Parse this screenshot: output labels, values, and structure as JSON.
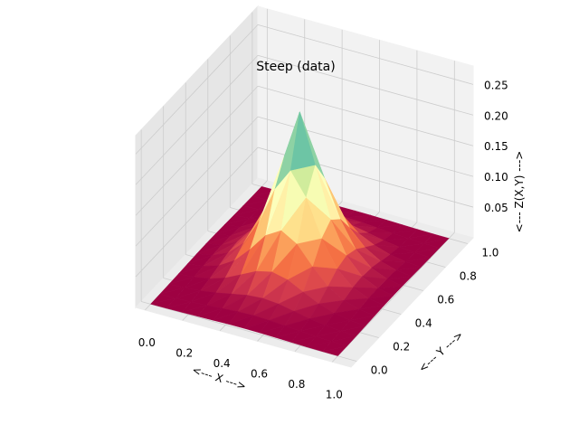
{
  "chart_data": {
    "type": "surface3d",
    "title": "Steep (data)",
    "xlabel": "<--- X --->",
    "ylabel": "<--- Y --->",
    "zlabel": "<--- Z(X,Y) --->",
    "xlim": [
      -0.05,
      1.1
    ],
    "ylim": [
      -0.05,
      1.05
    ],
    "zlim": [
      0.0,
      0.28
    ],
    "x_ticks": [
      "0.0",
      "0.2",
      "0.4",
      "0.6",
      "0.8",
      "1.0"
    ],
    "y_ticks": [
      "0.0",
      "0.2",
      "0.4",
      "0.6",
      "0.8",
      "1.0"
    ],
    "z_ticks": [
      "0.05",
      "0.10",
      "0.15",
      "0.20",
      "0.25"
    ],
    "x_tick_values": [
      0.0,
      0.2,
      0.4,
      0.6,
      0.8,
      1.0
    ],
    "y_tick_values": [
      0.0,
      0.2,
      0.4,
      0.6,
      0.8,
      1.0
    ],
    "z_tick_values": [
      0.05,
      0.1,
      0.15,
      0.2,
      0.25
    ],
    "colormap": "Spectral",
    "grid": true,
    "peak": {
      "x": 0.5,
      "y": 0.5,
      "z": 0.26
    }
  },
  "colors": {
    "pane_back": "#f2f2f2",
    "pane_side": "#e6e6e6",
    "pane_floor": "#ececec",
    "grid": "#cccccc",
    "edge": "#888888"
  }
}
